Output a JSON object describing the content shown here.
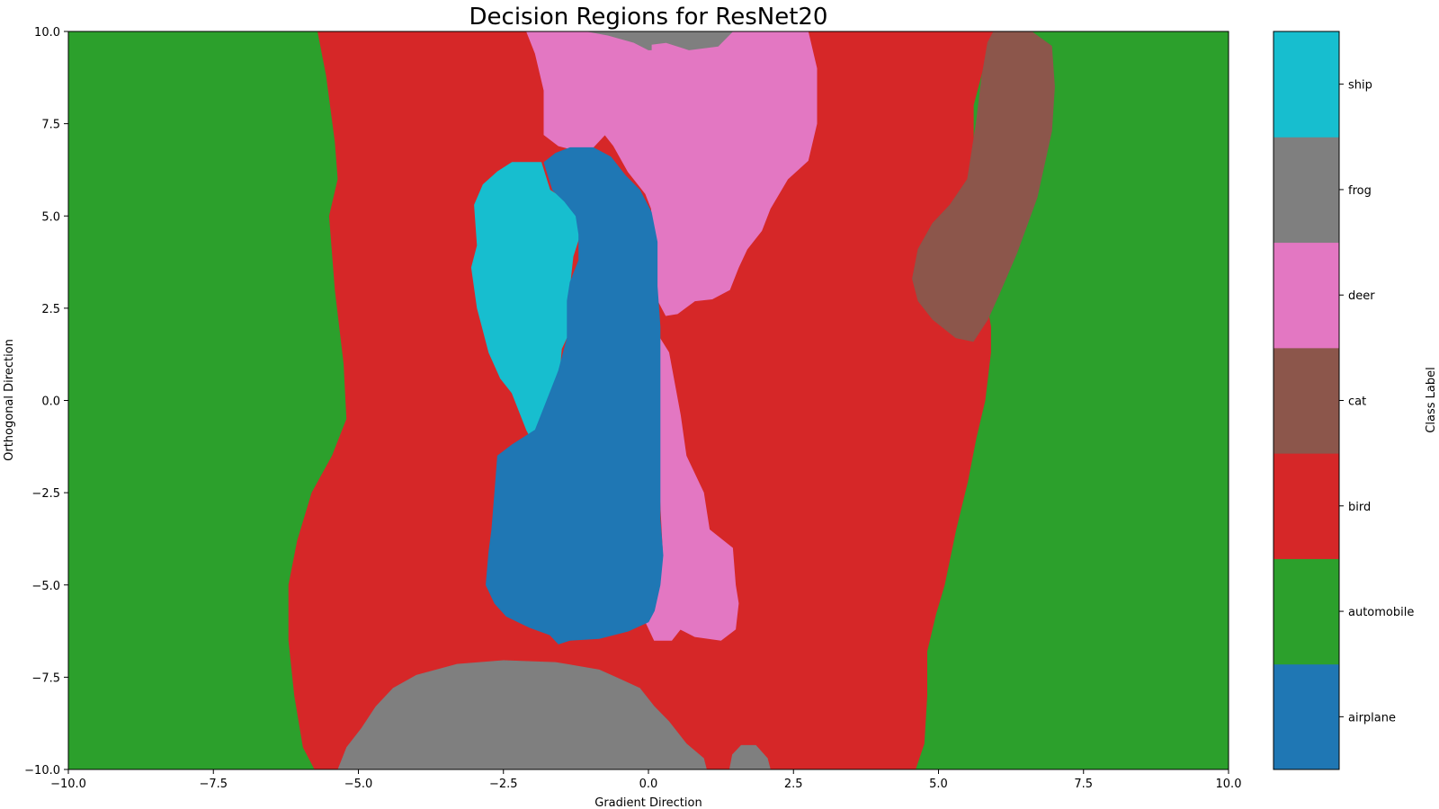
{
  "chart_data": {
    "type": "heatmap",
    "subtype": "decision-regions",
    "title": "Decision Regions for ResNet20",
    "xlabel": "Gradient Direction",
    "ylabel": "Orthogonal Direction",
    "xlim": [
      -10,
      10
    ],
    "ylim": [
      -10,
      10
    ],
    "xticks": [
      -10.0,
      -7.5,
      -5.0,
      -2.5,
      0.0,
      2.5,
      5.0,
      7.5,
      10.0
    ],
    "yticks": [
      -10.0,
      -7.5,
      -5.0,
      -2.5,
      0.0,
      2.5,
      5.0,
      7.5,
      10.0
    ],
    "grid": false,
    "colorbar": {
      "label": "Class Label",
      "classes": [
        {
          "name": "airplane",
          "color": "#1f77b4"
        },
        {
          "name": "automobile",
          "color": "#2ca02c"
        },
        {
          "name": "bird",
          "color": "#d62728"
        },
        {
          "name": "cat",
          "color": "#8c564b"
        },
        {
          "name": "deer",
          "color": "#e377c2"
        },
        {
          "name": "frog",
          "color": "#7f7f7f"
        },
        {
          "name": "ship",
          "color": "#17becf"
        }
      ]
    },
    "regions": [
      {
        "class": "automobile",
        "points": [
          [
            -10,
            -10
          ],
          [
            10,
            -10
          ],
          [
            10,
            10
          ],
          [
            -10,
            10
          ]
        ]
      },
      {
        "class": "bird",
        "points": [
          [
            -5.7,
            10
          ],
          [
            -5.55,
            8.8
          ],
          [
            -5.4,
            7
          ],
          [
            -5.35,
            6
          ],
          [
            -5.5,
            5
          ],
          [
            -5.4,
            3
          ],
          [
            -5.25,
            1
          ],
          [
            -5.2,
            -0.5
          ],
          [
            -5.45,
            -1.5
          ],
          [
            -5.8,
            -2.5
          ],
          [
            -6.05,
            -3.8
          ],
          [
            -6.2,
            -5
          ],
          [
            -6.2,
            -6.5
          ],
          [
            -6.1,
            -8
          ],
          [
            -5.95,
            -9.4
          ],
          [
            -5.75,
            -10
          ],
          [
            4.6,
            -10
          ],
          [
            4.75,
            -9.3
          ],
          [
            4.8,
            -8
          ],
          [
            4.8,
            -6.8
          ],
          [
            4.95,
            -5.8
          ],
          [
            5.1,
            -5
          ],
          [
            5.3,
            -3.5
          ],
          [
            5.5,
            -2.2
          ],
          [
            5.65,
            -1
          ],
          [
            5.8,
            0
          ],
          [
            5.9,
            1.3
          ],
          [
            5.9,
            2
          ],
          [
            5.75,
            3.4
          ],
          [
            5.65,
            5.2
          ],
          [
            5.6,
            6.5
          ],
          [
            5.6,
            8
          ],
          [
            5.8,
            9.2
          ],
          [
            5.95,
            10
          ]
        ]
      },
      {
        "class": "cat",
        "points": [
          [
            5.95,
            10
          ],
          [
            6.6,
            10
          ],
          [
            6.95,
            9.6
          ],
          [
            7,
            8.5
          ],
          [
            6.95,
            7.3
          ],
          [
            6.7,
            5.5
          ],
          [
            6.35,
            4
          ],
          [
            6.05,
            2.9
          ],
          [
            5.85,
            2.2
          ],
          [
            5.6,
            1.6
          ],
          [
            5.3,
            1.7
          ],
          [
            4.9,
            2.2
          ],
          [
            4.65,
            2.7
          ],
          [
            4.55,
            3.3
          ],
          [
            4.65,
            4.1
          ],
          [
            4.9,
            4.8
          ],
          [
            5.2,
            5.3
          ],
          [
            5.5,
            6
          ],
          [
            5.65,
            7.5
          ],
          [
            5.75,
            8.8
          ],
          [
            5.85,
            9.7
          ]
        ]
      },
      {
        "class": "deer",
        "points": [
          [
            -2.1,
            10
          ],
          [
            1.4,
            10
          ],
          [
            1.3,
            10
          ],
          [
            2.75,
            10
          ],
          [
            2.9,
            9
          ],
          [
            2.9,
            7.5
          ],
          [
            2.75,
            6.5
          ],
          [
            2.4,
            6
          ],
          [
            2.1,
            5.2
          ],
          [
            1.95,
            4.6
          ],
          [
            1.7,
            4.1
          ],
          [
            1.55,
            3.6
          ],
          [
            1.4,
            3
          ],
          [
            1.1,
            2.75
          ],
          [
            0.8,
            2.7
          ],
          [
            0.5,
            2.35
          ],
          [
            0.3,
            2.3
          ],
          [
            0.1,
            2.9
          ],
          [
            0.1,
            4.5
          ],
          [
            0.05,
            5.2
          ],
          [
            -0.05,
            5.6
          ],
          [
            -0.35,
            6.2
          ],
          [
            -0.6,
            6.9
          ],
          [
            -0.75,
            7.2
          ],
          [
            -1.05,
            6.7
          ],
          [
            -1.55,
            6.9
          ],
          [
            -1.8,
            7.2
          ],
          [
            -1.8,
            8.4
          ],
          [
            -1.95,
            9.4
          ]
        ]
      },
      {
        "class": "deer",
        "points": [
          [
            0.15,
            1.8
          ],
          [
            0.35,
            1.3
          ],
          [
            0.55,
            -0.4
          ],
          [
            0.65,
            -1.5
          ],
          [
            0.95,
            -2.5
          ],
          [
            1.05,
            -3.5
          ],
          [
            1.45,
            -4
          ],
          [
            1.5,
            -5
          ],
          [
            1.55,
            -5.5
          ],
          [
            1.5,
            -6.2
          ],
          [
            1.25,
            -6.5
          ],
          [
            0.8,
            -6.4
          ],
          [
            0.55,
            -6.2
          ],
          [
            0.4,
            -6.5
          ],
          [
            0.1,
            -6.5
          ],
          [
            -0.05,
            -6
          ],
          [
            0.15,
            -5.3
          ],
          [
            0.25,
            -4
          ],
          [
            0.2,
            -2.5
          ],
          [
            0.15,
            -1
          ],
          [
            0.15,
            0.5
          ]
        ]
      },
      {
        "class": "frog",
        "points": [
          [
            -1.05,
            10
          ],
          [
            1.45,
            10
          ],
          [
            1.2,
            9.6
          ],
          [
            0.7,
            9.5
          ],
          [
            0.3,
            9.7
          ],
          [
            0.05,
            9.65
          ],
          [
            0.05,
            9.5
          ],
          [
            0,
            9.5
          ],
          [
            -0.25,
            9.7
          ],
          [
            -0.7,
            9.9
          ]
        ]
      },
      {
        "class": "frog",
        "points": [
          [
            -5.35,
            -10
          ],
          [
            1.0,
            -10
          ],
          [
            0.95,
            -9.7
          ],
          [
            0.65,
            -9.3
          ],
          [
            0.35,
            -8.7
          ],
          [
            0.1,
            -8.3
          ],
          [
            -0.15,
            -7.8
          ],
          [
            -0.5,
            -7.55
          ],
          [
            -0.85,
            -7.3
          ],
          [
            -1.6,
            -7.1
          ],
          [
            -2.5,
            -7.05
          ],
          [
            -3.3,
            -7.15
          ],
          [
            -4.0,
            -7.45
          ],
          [
            -4.4,
            -7.8
          ],
          [
            -4.7,
            -8.3
          ],
          [
            -4.95,
            -8.9
          ],
          [
            -5.2,
            -9.4
          ]
        ]
      },
      {
        "class": "frog",
        "points": [
          [
            1.4,
            -10
          ],
          [
            2.1,
            -10
          ],
          [
            2.05,
            -9.7
          ],
          [
            1.85,
            -9.35
          ],
          [
            1.6,
            -9.35
          ],
          [
            1.45,
            -9.6
          ]
        ]
      },
      {
        "class": "ship",
        "points": [
          [
            -2.35,
            6.45
          ],
          [
            -1.85,
            6.45
          ],
          [
            -1.7,
            5.7
          ],
          [
            -1.4,
            5.4
          ],
          [
            -1.2,
            5.0
          ],
          [
            -1.2,
            4.4
          ],
          [
            -1.3,
            3.9
          ],
          [
            -1.35,
            3.2
          ],
          [
            -1.35,
            1.9
          ],
          [
            -1.5,
            1.4
          ],
          [
            -1.55,
            0.5
          ],
          [
            -1.7,
            -0.2
          ],
          [
            -1.8,
            -0.8
          ],
          [
            -1.95,
            -1.25
          ],
          [
            -2.1,
            -0.8
          ],
          [
            -2.35,
            0.2
          ],
          [
            -2.55,
            0.6
          ],
          [
            -2.75,
            1.3
          ],
          [
            -2.85,
            1.9
          ],
          [
            -2.95,
            2.5
          ],
          [
            -3.05,
            3.6
          ],
          [
            -2.95,
            4.2
          ],
          [
            -3.0,
            5.3
          ],
          [
            -2.85,
            5.85
          ],
          [
            -2.6,
            6.2
          ]
        ]
      },
      {
        "class": "airplane",
        "points": [
          [
            -1.8,
            6.45
          ],
          [
            -1.6,
            6.7
          ],
          [
            -1.35,
            6.85
          ],
          [
            -0.95,
            6.85
          ],
          [
            -0.65,
            6.6
          ],
          [
            -0.4,
            6.1
          ],
          [
            -0.15,
            5.7
          ],
          [
            0.05,
            5.1
          ],
          [
            0.15,
            4.3
          ],
          [
            0.15,
            3.1
          ],
          [
            0.2,
            2.0
          ],
          [
            0.2,
            -0.5
          ],
          [
            0.2,
            -2.5
          ],
          [
            0.2,
            -3.2
          ],
          [
            0.25,
            -4.2
          ],
          [
            0.2,
            -5
          ],
          [
            0.1,
            -5.7
          ],
          [
            0,
            -6.0
          ],
          [
            -0.35,
            -6.25
          ],
          [
            -0.85,
            -6.45
          ],
          [
            -1.35,
            -6.5
          ],
          [
            -1.55,
            -6.6
          ],
          [
            -1.7,
            -6.35
          ],
          [
            -2.05,
            -6.15
          ],
          [
            -2.45,
            -5.85
          ],
          [
            -2.65,
            -5.5
          ],
          [
            -2.8,
            -5.0
          ],
          [
            -2.75,
            -4.1
          ],
          [
            -2.7,
            -3.5
          ],
          [
            -2.65,
            -2.5
          ],
          [
            -2.6,
            -1.5
          ],
          [
            -2.35,
            -1.2
          ],
          [
            -1.95,
            -0.8
          ],
          [
            -1.75,
            0
          ],
          [
            -1.55,
            0.8
          ],
          [
            -1.4,
            1.7
          ],
          [
            -1.4,
            2.7
          ],
          [
            -1.35,
            3.2
          ],
          [
            -1.2,
            3.8
          ],
          [
            -1.2,
            4.5
          ],
          [
            -1.25,
            5.0
          ],
          [
            -1.45,
            5.4
          ],
          [
            -1.65,
            5.7
          ]
        ]
      }
    ]
  }
}
